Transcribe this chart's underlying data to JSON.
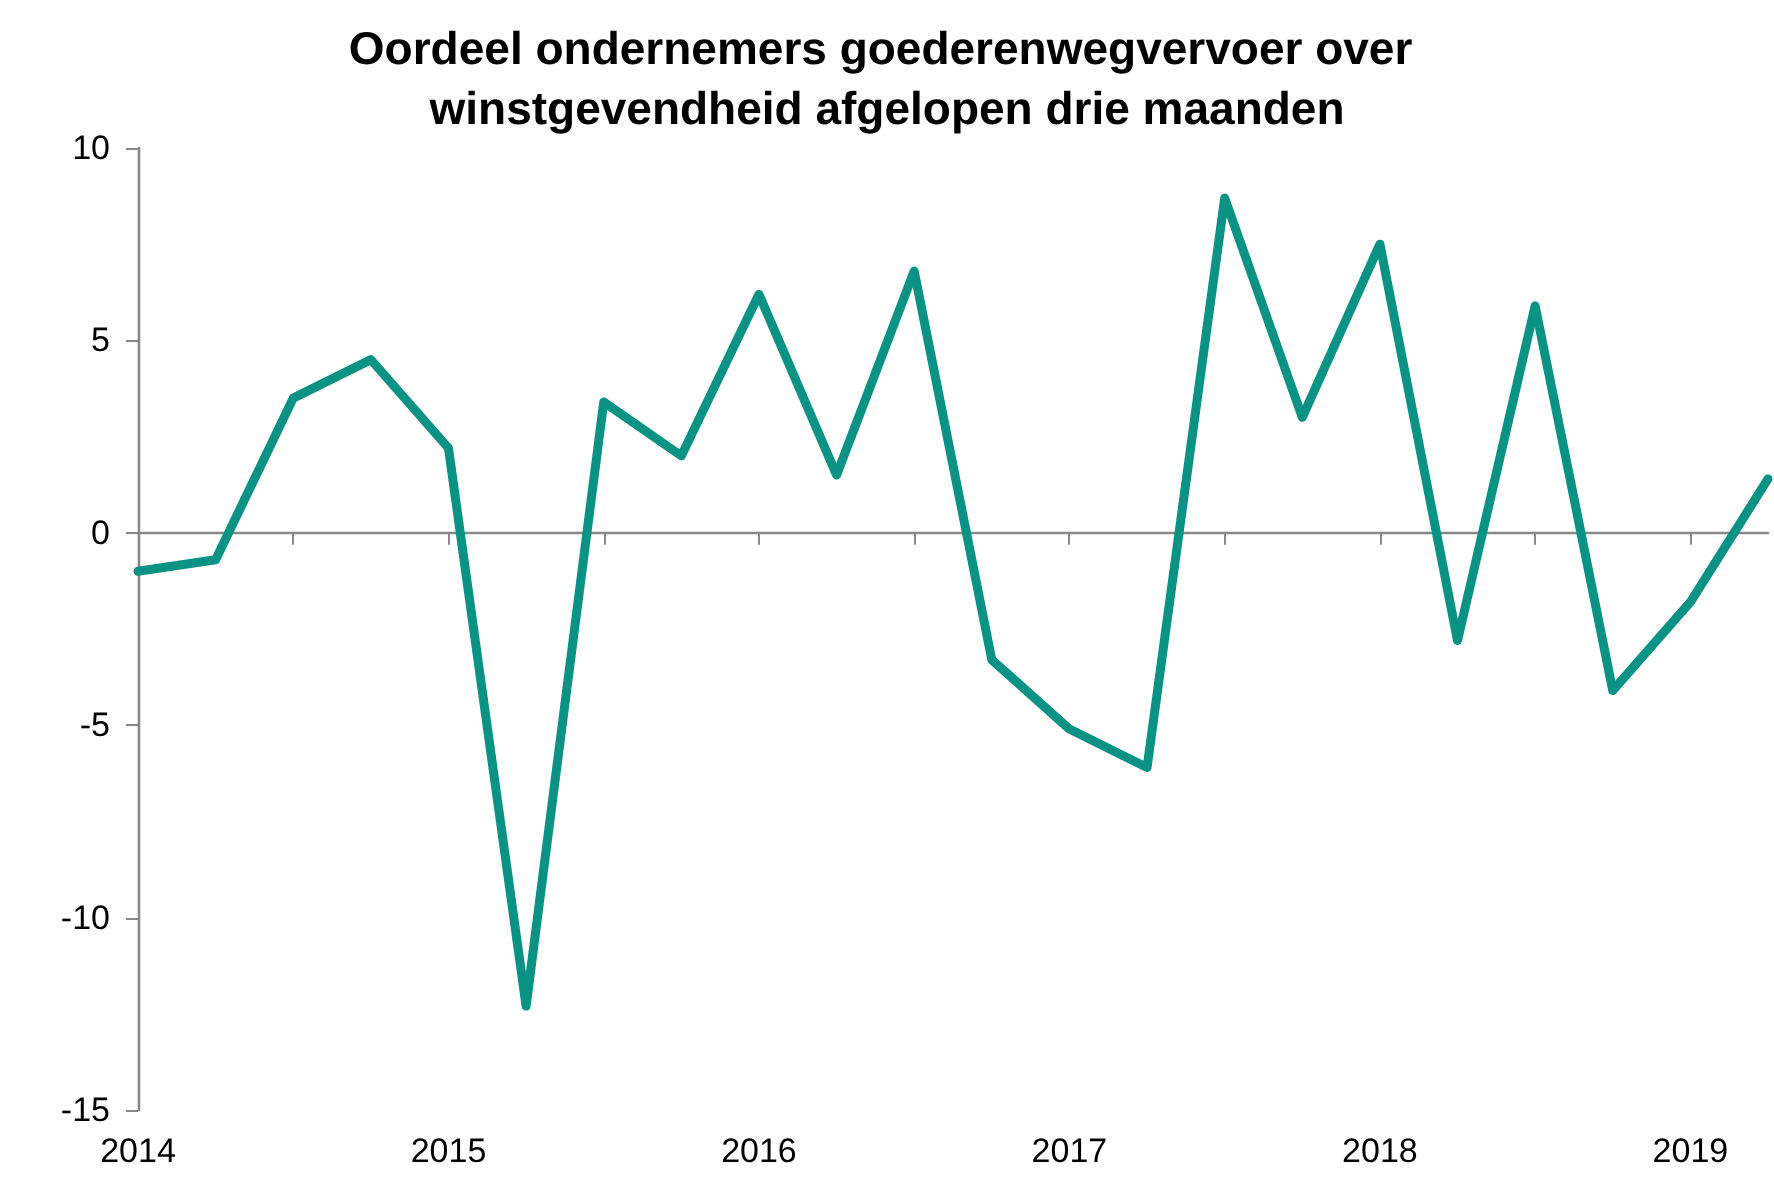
{
  "chart_data": {
    "type": "line",
    "title": "Oordeel ondernemers goederenwegvervoer over winstgevendheid afgelopen drie maanden",
    "categories": [
      "2014",
      null,
      null,
      null,
      "2015",
      null,
      null,
      null,
      "2016",
      null,
      null,
      null,
      "2017",
      null,
      null,
      null,
      "2018",
      null,
      null,
      null,
      "2019",
      null
    ],
    "series": [
      {
        "color": "#0a9384",
        "values": [
          -1.0,
          -0.7,
          3.5,
          4.5,
          2.2,
          -12.3,
          3.4,
          2.0,
          6.2,
          1.5,
          6.8,
          -3.3,
          -5.1,
          -6.1,
          8.7,
          3.0,
          7.5,
          -2.8,
          5.9,
          -4.1,
          -1.8,
          1.4
        ]
      }
    ],
    "ylim": [
      -15,
      10
    ],
    "yticks": [
      -15,
      -10,
      -5,
      0,
      5,
      10
    ],
    "marker": "none",
    "line_style": "solid"
  }
}
